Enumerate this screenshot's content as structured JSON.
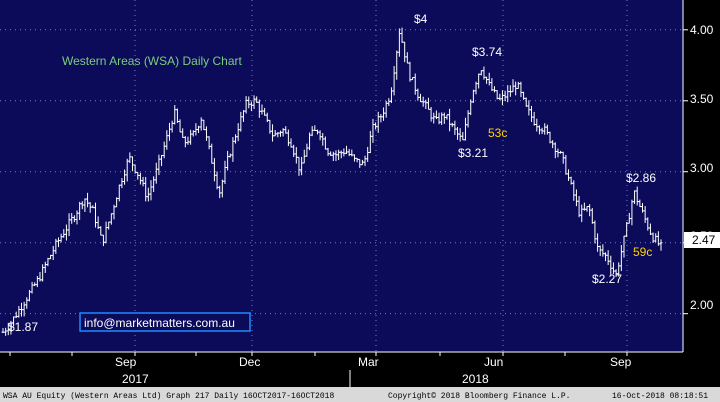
{
  "chart_data": {
    "type": "ohlc",
    "title": "Western Areas (WSA) Daily Chart",
    "y_ticks": [
      2.0,
      2.5,
      3.0,
      3.5,
      4.0
    ],
    "y_tick_labels": [
      "2.00",
      "2.50",
      "3.00",
      "3.50",
      "4.00"
    ],
    "ylim": [
      1.73,
      4.21
    ],
    "x_month_labels": [
      "Sep",
      "Dec",
      "Mar",
      "Jun",
      "Sep"
    ],
    "x_year_labels": [
      "2017",
      "2018"
    ],
    "last_price_label": "2.47",
    "grid": true,
    "closes": [
      1.87,
      1.95,
      2.05,
      2.15,
      2.25,
      2.38,
      2.5,
      2.6,
      2.7,
      2.82,
      2.72,
      2.5,
      2.7,
      2.92,
      3.1,
      2.98,
      2.82,
      3.0,
      3.2,
      3.42,
      3.2,
      3.25,
      3.38,
      3.12,
      2.85,
      3.1,
      3.3,
      3.48,
      3.5,
      3.38,
      3.25,
      3.3,
      3.2,
      3.0,
      3.25,
      3.3,
      3.15,
      3.12,
      3.15,
      3.08,
      3.05,
      3.3,
      3.4,
      3.55,
      4.0,
      3.7,
      3.55,
      3.45,
      3.35,
      3.4,
      3.3,
      3.21,
      3.55,
      3.74,
      3.6,
      3.5,
      3.55,
      3.62,
      3.45,
      3.35,
      3.3,
      3.2,
      3.1,
      2.9,
      2.7,
      2.75,
      2.45,
      2.4,
      2.27,
      2.55,
      2.86,
      2.7,
      2.55,
      2.47
    ]
  },
  "annotations": {
    "high_4": "$4",
    "high_374": "$3.74",
    "low_321": "$3.21",
    "move_53c": "53c",
    "high_286": "$2.86",
    "low_227": "$2.27",
    "move_59c": "59c",
    "low_187": "$1.87"
  },
  "email_box": "info@marketmatters.com.au",
  "footer": {
    "left": "WSA AU Equity (Western Areas Ltd) Graph 217  Daily 16OCT2017-16OCT2018",
    "center": "Copyright© 2018 Bloomberg Finance L.P.",
    "right": "16-Oct-2018 08:18:51"
  },
  "colors": {
    "background": "#0b0b5a",
    "grid": "#7a7acc",
    "bars": "#ffffff",
    "title": "#7dcc7d",
    "highlight": "#ffd200",
    "email": "#ffffff",
    "email_border": "#1a8cff"
  }
}
